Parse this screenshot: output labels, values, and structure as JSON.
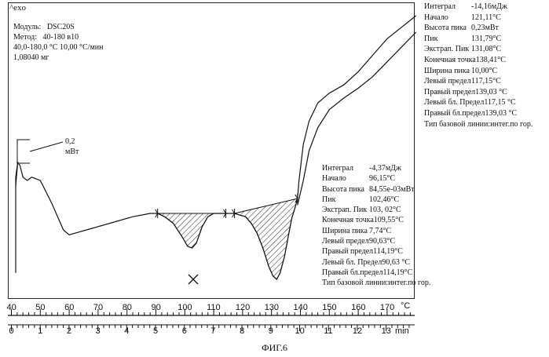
{
  "header": {
    "exo_label": "^exo"
  },
  "module_info": {
    "lines": [
      "Модуль:   DSC20S",
      "Метод:   40-180 в10",
      "40,0-180,0 °C 10,00 °C/мин",
      "1,08040 мг"
    ]
  },
  "scale_bar": {
    "value": "0,2",
    "unit": "мВт"
  },
  "peak1_panel": {
    "rows": [
      {
        "label": "Интеграл",
        "value": "-14,16мДж"
      },
      {
        "label": "Начало",
        "value": "121,11°C"
      },
      {
        "label": "Высота пика",
        "value": "0,23мВт"
      },
      {
        "label": "Пик",
        "value": "131,79°C"
      },
      {
        "label": "Экстрап. Пик",
        "value": "131,08°C"
      },
      {
        "label": "Конечная точка",
        "value": "138,41°C"
      },
      {
        "label": "Ширина пика",
        "value": "10,00°C"
      },
      {
        "label": "Левый предел",
        "value": "117,15°C"
      },
      {
        "label": "Правый предел",
        "value": "139,03 °C"
      },
      {
        "label": "Левый бл. Предел",
        "value": "117,15 °C"
      },
      {
        "label": "Правый бл.предел",
        "value": "139,03 °C"
      },
      {
        "label": "Тип базовой линии:",
        "value": "интег.по гор."
      }
    ]
  },
  "peak2_panel": {
    "rows": [
      {
        "label": "Интеграл",
        "value": "-4,37мДж"
      },
      {
        "label": "Начало",
        "value": "96,15°C"
      },
      {
        "label": "Высота пика",
        "value": "84,55е-03мВт"
      },
      {
        "label": "Пик",
        "value": "102,46°C"
      },
      {
        "label": "Экстрап. Пик",
        "value": "103, 02°C"
      },
      {
        "label": "Конечная точка",
        "value": "109,55°C"
      },
      {
        "label": "Ширина пика",
        "value": "7,74°C"
      },
      {
        "label": "Левый предел",
        "value": "90,63°C"
      },
      {
        "label": "Правый предел",
        "value": "114,19°C"
      },
      {
        "label": "Левый бл. Предел",
        "value": "90,63 °C"
      },
      {
        "label": "Правый бл.предел",
        "value": "114,19°C"
      },
      {
        "label": "Тип базовой линии:",
        "value": "интег.по гор."
      }
    ]
  },
  "chart_data": {
    "type": "line",
    "title": "",
    "temperature_axis": {
      "unit": "°C",
      "ticks": [
        "40",
        "50",
        "60",
        "70",
        "80",
        "90",
        "100",
        "110",
        "120",
        "130",
        "140",
        "150",
        "160",
        "170"
      ],
      "range": [
        40,
        180
      ]
    },
    "time_axis": {
      "unit": "min",
      "ticks": [
        "0",
        "1",
        "2",
        "3",
        "4",
        "5",
        "6",
        "7",
        "8",
        "9",
        "10",
        "11",
        "12",
        "13"
      ],
      "range": [
        0,
        14
      ]
    },
    "series": [
      {
        "x": [
          41.5,
          42.2,
          43,
          44,
          45.5,
          47,
          50,
          54,
          58,
          60,
          62,
          66,
          70,
          76,
          82,
          88,
          90.6,
          93,
          96,
          99,
          101,
          102.5,
          104,
          106,
          108,
          110,
          112,
          114.2,
          116,
          117.2,
          119,
          121,
          123,
          125,
          127,
          129,
          130.5,
          131.8,
          133,
          134.5,
          136,
          137,
          138.4,
          139,
          139.5,
          141,
          143,
          146,
          150,
          155,
          160,
          165,
          170,
          175,
          180
        ],
        "y": [
          0.17,
          0.31,
          0.29,
          0.22,
          0.2,
          0.22,
          0.2,
          0.06,
          -0.1,
          -0.13,
          -0.12,
          -0.1,
          -0.08,
          -0.05,
          -0.02,
          0.0,
          0.0,
          -0.02,
          -0.06,
          -0.14,
          -0.2,
          -0.21,
          -0.18,
          -0.08,
          -0.02,
          0.0,
          0.0,
          0.0,
          0.0,
          0.0,
          -0.01,
          -0.02,
          -0.06,
          -0.12,
          -0.21,
          -0.32,
          -0.38,
          -0.4,
          -0.36,
          -0.26,
          -0.12,
          -0.03,
          0.05,
          0.09,
          0.2,
          0.42,
          0.56,
          0.67,
          0.73,
          0.78,
          0.86,
          0.96,
          1.06,
          1.13,
          1.2
        ]
      },
      {
        "x": [
          139,
          141,
          143,
          146,
          150,
          155,
          160,
          165,
          170,
          175,
          180
        ],
        "y": [
          0.05,
          0.2,
          0.38,
          0.52,
          0.63,
          0.7,
          0.76,
          0.83,
          0.92,
          1.01,
          1.1
        ]
      }
    ],
    "peaks": [
      {
        "from": 90.6,
        "to": 114.2
      },
      {
        "from": 117.2,
        "to": 139.0
      }
    ]
  }
}
